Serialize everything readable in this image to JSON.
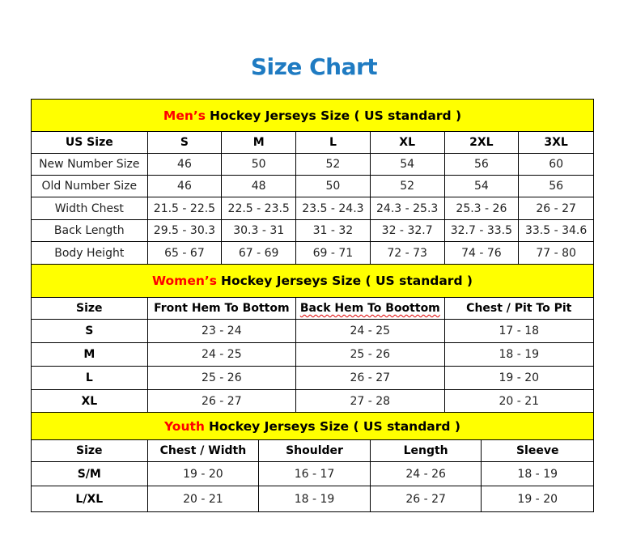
{
  "title": "Size Chart",
  "sections": [
    {
      "title_accent": "Men’s",
      "title_rest": "Hockey Jerseys Size ( US standard )",
      "columns": [
        "US Size",
        "S",
        "M",
        "L",
        "XL",
        "2XL",
        "3XL"
      ],
      "rows": [
        [
          "New Number Size",
          "46",
          "50",
          "52",
          "54",
          "56",
          "60"
        ],
        [
          "Old Number Size",
          "46",
          "48",
          "50",
          "52",
          "54",
          "56"
        ],
        [
          "Width Chest",
          "21.5 - 22.5",
          "22.5 - 23.5",
          "23.5 - 24.3",
          "24.3 - 25.3",
          "25.3 - 26",
          "26 - 27"
        ],
        [
          "Back Length",
          "29.5 - 30.3",
          "30.3 - 31",
          "31 - 32",
          "32 - 32.7",
          "32.7 - 33.5",
          "33.5 - 34.6"
        ],
        [
          "Body Height",
          "65 - 67",
          "67 - 69",
          "69 - 71",
          "72 - 73",
          "74 - 76",
          "77 - 80"
        ]
      ]
    },
    {
      "title_accent": "Women’s",
      "title_rest": "Hockey Jerseys Size ( US standard )",
      "columns": [
        "Size",
        "Front Hem To Bottom",
        "Back Hem To Boottom",
        "Chest / Pit To Pit"
      ],
      "rows": [
        [
          "S",
          "23 - 24",
          "24 - 25",
          "17 - 18"
        ],
        [
          "M",
          "24 - 25",
          "25 - 26",
          "18 - 19"
        ],
        [
          "L",
          "25 - 26",
          "26 - 27",
          "19 - 20"
        ],
        [
          "XL",
          "26 - 27",
          "27 - 28",
          "20 - 21"
        ]
      ]
    },
    {
      "title_accent": "Youth",
      "title_rest": "Hockey Jerseys Size ( US standard )",
      "columns": [
        "Size",
        "Chest / Width",
        "Shoulder",
        "Length",
        "Sleeve"
      ],
      "rows": [
        [
          "S/M",
          "19 - 20",
          "16 - 17",
          "24 - 26",
          "18 - 19"
        ],
        [
          "L/XL",
          "20 - 21",
          "18 - 19",
          "26 - 27",
          "19 - 20"
        ]
      ]
    }
  ],
  "colors": {
    "title": "#1f7bc2",
    "section_bg": "#ffff00",
    "accent": "#ff0000"
  }
}
